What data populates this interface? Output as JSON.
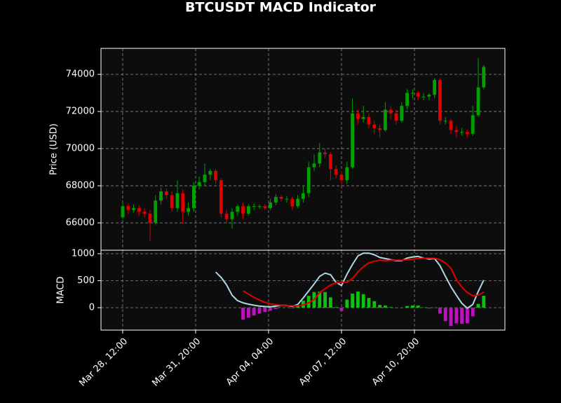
{
  "chart_data": {
    "type": "candlestick",
    "title": "BTCUSDT MACD Indicator",
    "ylabel": "Price (USD)",
    "grid": true,
    "up_color": "#00a000",
    "down_color": "#e00000",
    "x": [
      "Mar 28, 12:00",
      "Mar 28, 18:00",
      "Mar 29, 00:00",
      "Mar 29, 06:00",
      "Mar 29, 12:00",
      "Mar 29, 18:00",
      "Mar 30, 00:00",
      "Mar 30, 06:00",
      "Mar 30, 12:00",
      "Mar 30, 18:00",
      "Mar 31, 00:00",
      "Mar 31, 06:00",
      "Mar 31, 12:00",
      "Mar 31, 18:00",
      "Apr 01, 00:00",
      "Apr 01, 06:00",
      "Apr 01, 12:00",
      "Apr 01, 18:00",
      "Apr 02, 00:00",
      "Apr 02, 06:00",
      "Apr 02, 12:00",
      "Apr 02, 18:00",
      "Apr 03, 00:00",
      "Apr 03, 06:00",
      "Apr 03, 12:00",
      "Apr 03, 18:00",
      "Apr 04, 00:00",
      "Apr 04, 06:00",
      "Apr 04, 12:00",
      "Apr 04, 18:00",
      "Apr 05, 00:00",
      "Apr 05, 06:00",
      "Apr 05, 12:00",
      "Apr 05, 18:00",
      "Apr 06, 00:00",
      "Apr 06, 06:00",
      "Apr 06, 12:00",
      "Apr 06, 18:00",
      "Apr 07, 00:00",
      "Apr 07, 06:00",
      "Apr 07, 12:00",
      "Apr 07, 18:00",
      "Apr 08, 00:00",
      "Apr 08, 06:00",
      "Apr 08, 12:00",
      "Apr 08, 18:00",
      "Apr 09, 00:00",
      "Apr 09, 06:00",
      "Apr 09, 12:00",
      "Apr 09, 18:00",
      "Apr 10, 00:00",
      "Apr 10, 06:00",
      "Apr 10, 12:00",
      "Apr 10, 18:00",
      "Apr 11, 00:00",
      "Apr 11, 06:00",
      "Apr 11, 12:00",
      "Apr 11, 18:00",
      "Apr 12, 00:00",
      "Apr 12, 06:00",
      "Apr 12, 12:00",
      "Apr 12, 18:00",
      "Apr 13, 00:00",
      "Apr 13, 06:00",
      "Apr 13, 12:00",
      "Apr 13, 18:00",
      "Apr 14, 00:00"
    ],
    "xlim": [
      "Mar 27, 12:12",
      "Apr 14, 23:12"
    ],
    "xticks": [
      "Mar 28, 12:00",
      "Mar 31, 20:00",
      "Apr 04, 04:00",
      "Apr 07, 12:00",
      "Apr 10, 20:00"
    ],
    "ylim": [
      64530,
      75400
    ],
    "yticks": [
      66000,
      68000,
      70000,
      72000,
      74000
    ],
    "open": [
      66300,
      66900,
      66700,
      66800,
      66600,
      66500,
      66000,
      67200,
      67700,
      67500,
      66800,
      67600,
      66600,
      66800,
      68000,
      68200,
      68600,
      68800,
      68300,
      66500,
      66200,
      66600,
      66900,
      66500,
      66900,
      66900,
      66900,
      66800,
      67100,
      67400,
      67300,
      67300,
      66900,
      67300,
      67600,
      69000,
      69200,
      69800,
      69700,
      68900,
      68600,
      68300,
      69000,
      71900,
      71600,
      71700,
      71300,
      71100,
      71000,
      72100,
      71900,
      71500,
      72300,
      73000,
      73000,
      72800,
      72800,
      72900,
      73700,
      71500,
      71500,
      71000,
      70900,
      70900,
      70800,
      71800,
      73300
    ],
    "high": [
      67100,
      67050,
      67000,
      66950,
      66800,
      66700,
      67500,
      67900,
      67850,
      67700,
      68300,
      67800,
      67100,
      68200,
      68500,
      69200,
      68900,
      68900,
      68400,
      66700,
      66800,
      67000,
      67100,
      67000,
      67050,
      67000,
      67000,
      67300,
      67550,
      67500,
      67450,
      67400,
      67500,
      68000,
      69300,
      69700,
      70300,
      70000,
      69800,
      69100,
      68800,
      69300,
      72700,
      72100,
      72300,
      71900,
      71500,
      71300,
      72500,
      72300,
      72100,
      72500,
      73200,
      73200,
      73100,
      73000,
      73000,
      73800,
      73800,
      71700,
      71600,
      71200,
      71100,
      71000,
      72300,
      74870,
      74500
    ],
    "low": [
      66200,
      66500,
      66550,
      66400,
      66300,
      65050,
      65900,
      67000,
      67300,
      66600,
      66600,
      65900,
      66400,
      66600,
      67800,
      68000,
      68300,
      68100,
      66300,
      66000,
      65700,
      66400,
      66200,
      66400,
      66700,
      66750,
      66700,
      66700,
      66950,
      67150,
      67100,
      66700,
      66800,
      67100,
      67400,
      68800,
      69000,
      69500,
      68300,
      68400,
      68000,
      68100,
      68900,
      71300,
      71400,
      71100,
      70800,
      70600,
      70900,
      71600,
      71300,
      71400,
      72100,
      72700,
      72600,
      72600,
      72600,
      72700,
      71300,
      71300,
      70800,
      70600,
      70700,
      70600,
      70700,
      71700,
      73200
    ],
    "close": [
      66900,
      66700,
      66800,
      66600,
      66500,
      66000,
      67200,
      67700,
      67500,
      66800,
      67600,
      66600,
      66800,
      68000,
      68200,
      68600,
      68800,
      68300,
      66500,
      66200,
      66600,
      66900,
      66500,
      66900,
      66900,
      66900,
      66800,
      67100,
      67400,
      67300,
      67300,
      66900,
      67300,
      67600,
      69000,
      69200,
      69800,
      69700,
      68900,
      68600,
      68300,
      69000,
      71900,
      71600,
      71700,
      71300,
      71100,
      71000,
      72100,
      71900,
      71500,
      72300,
      73000,
      73000,
      72800,
      72800,
      72900,
      73700,
      71500,
      71500,
      71000,
      70900,
      70900,
      70800,
      71800,
      73300,
      74400
    ],
    "indicator": {
      "type": "macd",
      "ylabel": "MACD",
      "ylim": [
        -416,
        1065
      ],
      "yticks": [
        0,
        500,
        1000
      ],
      "series": [
        {
          "color": "#add8e6",
          "values": [
            null,
            null,
            null,
            null,
            null,
            null,
            null,
            null,
            null,
            null,
            null,
            null,
            null,
            null,
            null,
            null,
            null,
            660,
            560,
            420,
            230,
            130,
            90,
            65,
            45,
            30,
            20,
            15,
            30,
            45,
            40,
            25,
            60,
            180,
            310,
            440,
            580,
            640,
            610,
            470,
            410,
            620,
            800,
            960,
            1010,
            1010,
            980,
            930,
            910,
            890,
            870,
            870,
            920,
            940,
            950,
            920,
            900,
            910,
            780,
            580,
            390,
            230,
            80,
            -10,
            60,
            300,
            510
          ]
        },
        {
          "color": "#e00000",
          "values": [
            null,
            null,
            null,
            null,
            null,
            null,
            null,
            null,
            null,
            null,
            null,
            null,
            null,
            null,
            null,
            null,
            null,
            null,
            null,
            null,
            null,
            null,
            310,
            250,
            190,
            140,
            100,
            70,
            55,
            45,
            40,
            35,
            35,
            50,
            90,
            150,
            280,
            350,
            420,
            460,
            470,
            470,
            540,
            660,
            760,
            830,
            860,
            880,
            870,
            880,
            880,
            880,
            890,
            900,
            910,
            915,
            915,
            915,
            890,
            830,
            730,
            520,
            380,
            280,
            220,
            230,
            290
          ]
        }
      ],
      "histogram": {
        "up_color": "#10c010",
        "down_color": "#c010c0",
        "values": [
          null,
          null,
          null,
          null,
          null,
          null,
          null,
          null,
          null,
          null,
          null,
          null,
          null,
          null,
          null,
          null,
          null,
          null,
          null,
          null,
          null,
          null,
          -220,
          -185,
          -145,
          -110,
          -80,
          -55,
          -25,
          0,
          0,
          -10,
          25,
          130,
          220,
          290,
          300,
          290,
          190,
          10,
          -60,
          150,
          260,
          300,
          250,
          180,
          120,
          50,
          40,
          10,
          -10,
          -10,
          30,
          40,
          40,
          5,
          -15,
          -5,
          -110,
          -250,
          -340,
          -290,
          -300,
          -290,
          -160,
          70,
          220
        ]
      }
    }
  }
}
